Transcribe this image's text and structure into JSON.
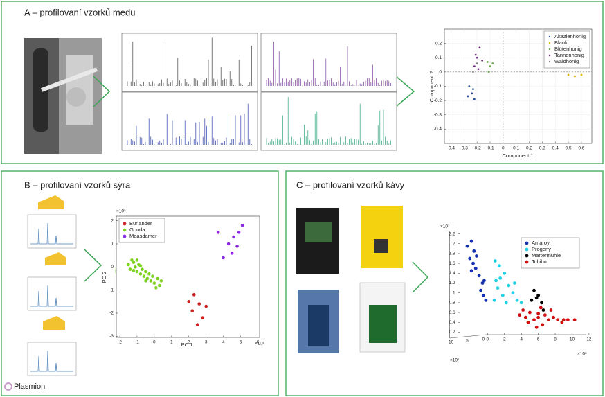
{
  "panels": [
    {
      "title": "A – profilovaní vzorků medu"
    },
    {
      "title": "B – profilovaní vzorků sýra"
    },
    {
      "title": "C – profilovaní vzorků kávy"
    }
  ],
  "logo": "Plasmion",
  "chart_data": [
    {
      "type": "scatter",
      "x_label": "Component 1",
      "y_label": "Component 2",
      "xlim": [
        -0.45,
        0.68
      ],
      "ylim": [
        -0.5,
        0.3
      ],
      "xticks": [
        -0.4,
        -0.3,
        -0.2,
        -0.1,
        0,
        0.1,
        0.2,
        0.3,
        0.4,
        0.5,
        0.6
      ],
      "yticks": [
        -0.4,
        -0.3,
        -0.2,
        -0.1,
        0,
        0.1,
        0.2
      ],
      "grid": true,
      "zero_lines": true,
      "box": true,
      "legend": "upper right",
      "series": [
        {
          "name": "Akazienhonig",
          "color": "#2a4f9e",
          "x": [
            -0.26,
            -0.24,
            -0.22,
            -0.27,
            -0.23
          ],
          "values": [
            -0.1,
            -0.15,
            -0.19,
            -0.17,
            -0.12
          ]
        },
        {
          "name": "Blank",
          "color": "#d6b400",
          "x": [
            0.5,
            0.55,
            0.6
          ],
          "values": [
            -0.02,
            -0.03,
            -0.02
          ]
        },
        {
          "name": "Blütenhonig",
          "color": "#6aa84f",
          "x": [
            -0.12,
            -0.1,
            -0.08,
            -0.11
          ],
          "values": [
            0.07,
            0.04,
            0.06,
            0.0
          ]
        },
        {
          "name": "Tannenhonig",
          "color": "#6a2c7a",
          "x": [
            -0.18,
            -0.2,
            -0.22,
            -0.19,
            -0.16,
            -0.21
          ],
          "values": [
            0.17,
            0.1,
            0.04,
            0.02,
            0.08,
            0.12
          ]
        },
        {
          "name": "Waldhonig",
          "color": "#888888",
          "x": [
            -0.2,
            -0.23
          ],
          "values": [
            0.06,
            0.0
          ]
        }
      ]
    },
    {
      "type": "scatter",
      "x_label": "PC 1",
      "y_label": "PC 2",
      "x_exponent": "×10⁵",
      "y_exponent": "×10⁵",
      "xlim": [
        -2.2,
        6.1
      ],
      "ylim": [
        -3.05,
        2.2
      ],
      "xticks": [
        -2,
        -1,
        0,
        1,
        2,
        3,
        4,
        5,
        6
      ],
      "yticks": [
        -3,
        -2,
        -1,
        0,
        1,
        2
      ],
      "grid": false,
      "box": true,
      "legend": "upper left",
      "series": [
        {
          "name": "Burlander",
          "color": "#cc2222",
          "x": [
            2.0,
            2.3,
            2.6,
            2.2,
            2.8,
            2.5,
            3.0
          ],
          "values": [
            -1.5,
            -1.2,
            -1.6,
            -1.9,
            -2.2,
            -2.5,
            -1.7
          ]
        },
        {
          "name": "Gouda",
          "color": "#7ed321",
          "x": [
            -1.5,
            -1.4,
            -1.2,
            -1.1,
            -1.0,
            -0.9,
            -0.8,
            -0.7,
            -0.6,
            -0.5,
            -0.4,
            -0.3,
            -0.2,
            -0.1,
            0.0,
            0.2,
            0.3,
            -1.3,
            -1.0,
            -0.8,
            -0.5,
            0.1,
            0.4,
            -1.2
          ],
          "values": [
            0.1,
            -0.1,
            0.2,
            0.0,
            -0.2,
            0.1,
            -0.3,
            -0.1,
            -0.4,
            -0.2,
            -0.5,
            -0.3,
            -0.6,
            -0.4,
            -0.7,
            -0.5,
            -0.8,
            0.3,
            0.3,
            0.05,
            -0.6,
            -0.9,
            -0.6,
            -0.15
          ]
        },
        {
          "name": "Maasdamer",
          "color": "#8a2be2",
          "x": [
            3.7,
            4.3,
            4.6,
            4.9,
            5.1,
            4.0,
            4.5,
            4.8
          ],
          "values": [
            1.5,
            1.0,
            1.3,
            1.5,
            1.8,
            0.4,
            0.6,
            0.9
          ]
        }
      ]
    },
    {
      "type": "scatter",
      "x_exponent": "×10⁸",
      "y_exponent": "×10⁷",
      "depth_exponent": "×10⁷",
      "depth_ticks": [
        10,
        5,
        0
      ],
      "xlim": [
        -3.5,
        12.5
      ],
      "ylim": [
        0.15,
        2.25
      ],
      "xticks": [
        0,
        2,
        4,
        6,
        8,
        10,
        12
      ],
      "yticks": [
        0.2,
        0.4,
        0.6,
        0.8,
        1,
        1.2,
        1.4,
        1.6,
        1.8,
        2,
        2.2
      ],
      "grid": false,
      "box": false,
      "legend": "upper right",
      "series": [
        {
          "name": "Amaroy",
          "color": "#1530b0",
          "x": [
            -2.4,
            -1.9,
            -1.6,
            -2.1,
            -1.7,
            -1.4,
            -1.9,
            -1.0,
            -0.6,
            -0.8,
            -0.5,
            -0.2,
            -0.4,
            -1.3
          ],
          "values": [
            1.95,
            2.05,
            1.85,
            1.7,
            1.6,
            1.5,
            1.45,
            1.35,
            1.2,
            1.05,
            0.95,
            0.85,
            1.25,
            1.75
          ]
        },
        {
          "name": "Progeny",
          "color": "#22d3e6",
          "x": [
            0.9,
            1.4,
            2.0,
            1.5,
            2.5,
            1.2,
            3.0,
            1.8,
            0.8,
            2.2,
            3.5,
            4.0,
            3.2,
            1.0
          ],
          "values": [
            1.65,
            1.55,
            1.4,
            1.3,
            1.15,
            1.1,
            1.0,
            0.95,
            0.85,
            0.8,
            0.85,
            0.8,
            1.2,
            1.25
          ]
        },
        {
          "name": "Martermühle",
          "color": "#000000",
          "x": [
            5.5,
            6.0,
            5.8,
            6.4,
            5.2,
            6.6
          ],
          "values": [
            1.05,
            0.95,
            0.9,
            0.8,
            0.85,
            0.65
          ]
        },
        {
          "name": "Tchibo",
          "color": "#d01010",
          "x": [
            3.8,
            4.5,
            5.0,
            5.5,
            6.0,
            6.3,
            6.8,
            7.2,
            7.8,
            8.3,
            9.0,
            9.5,
            10.3,
            6.5,
            5.8,
            4.8,
            7.5,
            4.2,
            8.8,
            6.0
          ],
          "values": [
            0.55,
            0.5,
            0.6,
            0.45,
            0.5,
            0.7,
            0.55,
            0.45,
            0.5,
            0.45,
            0.45,
            0.45,
            0.45,
            0.35,
            0.3,
            0.4,
            0.65,
            0.65,
            0.4,
            0.58
          ]
        }
      ]
    }
  ]
}
